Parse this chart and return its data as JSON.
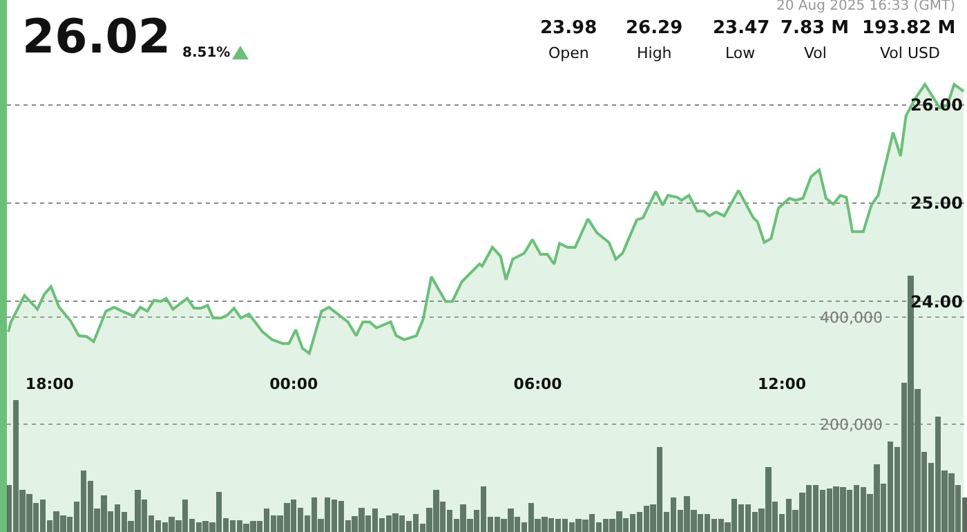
{
  "chart_data": {
    "type": "area",
    "annotations": [
      "26.02",
      "8.51%",
      "20 Aug 2025 16:33 (GMT)",
      "23.98",
      "Open",
      "26.29",
      "High",
      "23.47",
      "Low",
      "7.83 M",
      "Vol",
      "193.82 M",
      "Vol USD"
    ],
    "series": [
      {
        "color": "#6cbf7a",
        "x": [
          "2025-08-19T16:59",
          "2025-08-19T17:03",
          "2025-08-19T17:23",
          "2025-08-19T17:42",
          "2025-08-19T17:52",
          "2025-08-19T18:02",
          "2025-08-19T18:14",
          "2025-08-19T18:31",
          "2025-08-19T18:43",
          "2025-08-19T18:55",
          "2025-08-19T19:05",
          "2025-08-19T19:23",
          "2025-08-19T19:35",
          "2025-08-19T19:47",
          "2025-08-19T20:04",
          "2025-08-19T20:14",
          "2025-08-19T20:24",
          "2025-08-19T20:34",
          "2025-08-19T20:44",
          "2025-08-19T20:52",
          "2025-08-19T21:02",
          "2025-08-19T21:23",
          "2025-08-19T21:33",
          "2025-08-19T21:43",
          "2025-08-19T21:53",
          "2025-08-19T22:01",
          "2025-08-19T22:13",
          "2025-08-19T22:22",
          "2025-08-19T22:32",
          "2025-08-19T22:42",
          "2025-08-19T22:54",
          "2025-08-19T23:14",
          "2025-08-19T23:28",
          "2025-08-19T23:44",
          "2025-08-19T23:53",
          "2025-08-20T00:03",
          "2025-08-20T00:13",
          "2025-08-20T00:23",
          "2025-08-20T00:41",
          "2025-08-20T00:52",
          "2025-08-20T01:20",
          "2025-08-20T01:32",
          "2025-08-20T01:42",
          "2025-08-20T01:52",
          "2025-08-20T02:02",
          "2025-08-20T02:23",
          "2025-08-20T02:31",
          "2025-08-20T02:43",
          "2025-08-20T03:01",
          "2025-08-20T03:11",
          "2025-08-20T03:23",
          "2025-08-20T03:44",
          "2025-08-20T03:54",
          "2025-08-20T04:08",
          "2025-08-20T04:34",
          "2025-08-20T04:38",
          "2025-08-20T04:53",
          "2025-08-20T05:05",
          "2025-08-20T05:13",
          "2025-08-20T05:23",
          "2025-08-20T05:40",
          "2025-08-20T05:52",
          "2025-08-20T06:04",
          "2025-08-20T06:14",
          "2025-08-20T06:24",
          "2025-08-20T06:32",
          "2025-08-20T06:44",
          "2025-08-20T06:55",
          "2025-08-20T07:14",
          "2025-08-20T07:27",
          "2025-08-20T07:45",
          "2025-08-20T07:55",
          "2025-08-20T08:05",
          "2025-08-20T08:26",
          "2025-08-20T08:35",
          "2025-08-20T08:54",
          "2025-08-20T09:04",
          "2025-08-20T09:12",
          "2025-08-20T09:26",
          "2025-08-20T09:32",
          "2025-08-20T09:43",
          "2025-08-20T09:55",
          "2025-08-20T10:05",
          "2025-08-20T10:13",
          "2025-08-20T10:23",
          "2025-08-20T10:35",
          "2025-08-20T10:56",
          "2025-08-20T11:18",
          "2025-08-20T11:24",
          "2025-08-20T11:34",
          "2025-08-20T11:44",
          "2025-08-20T11:55",
          "2025-08-20T12:11",
          "2025-08-20T12:20",
          "2025-08-20T12:31",
          "2025-08-20T12:43",
          "2025-08-20T12:55",
          "2025-08-20T13:05",
          "2025-08-20T13:16",
          "2025-08-20T13:26",
          "2025-08-20T13:35",
          "2025-08-20T13:44",
          "2025-08-20T14:00",
          "2025-08-20T14:12",
          "2025-08-20T14:22",
          "2025-08-20T14:44",
          "2025-08-20T14:55",
          "2025-08-20T15:03",
          "2025-08-20T15:17",
          "2025-08-20T15:31",
          "2025-08-20T15:41",
          "2025-08-20T15:53",
          "2025-08-20T16:04",
          "2025-08-20T16:14",
          "2025-08-20T16:28"
        ],
        "values": [
          23.69,
          23.79,
          24.06,
          23.92,
          24.07,
          24.15,
          23.94,
          23.8,
          23.65,
          23.64,
          23.59,
          23.9,
          23.94,
          23.9,
          23.85,
          23.94,
          23.9,
          24.01,
          24,
          24.03,
          23.92,
          24.03,
          23.93,
          23.93,
          23.96,
          23.83,
          23.83,
          23.86,
          23.93,
          23.83,
          23.87,
          23.69,
          23.61,
          23.57,
          23.57,
          23.71,
          23.52,
          23.47,
          23.9,
          23.94,
          23.79,
          23.65,
          23.79,
          23.79,
          23.73,
          23.79,
          23.65,
          23.61,
          23.65,
          23.82,
          24.25,
          24,
          24,
          24.2,
          24.38,
          24.36,
          24.55,
          24.46,
          24.22,
          24.43,
          24.49,
          24.63,
          24.48,
          24.48,
          24.38,
          24.59,
          24.55,
          24.55,
          24.84,
          24.7,
          24.6,
          24.43,
          24.49,
          24.83,
          24.85,
          25.12,
          24.98,
          25.08,
          25.06,
          25.03,
          25.08,
          24.92,
          24.92,
          24.87,
          24.91,
          24.87,
          25.13,
          24.85,
          24.81,
          24.6,
          24.64,
          24.95,
          25.05,
          25.03,
          25.05,
          25.27,
          25.34,
          25.05,
          24.99,
          25.08,
          25.06,
          24.71,
          24.71,
          24.98,
          25.08,
          25.72,
          25.48,
          25.89,
          26.07,
          26.21,
          26.1,
          25.97,
          26,
          26.21,
          26.14
        ]
      },
      {
        "type": "bar",
        "axis": "y2",
        "color": "#5d6862",
        "x": [
          "2025-08-19T17:00",
          "2025-08-19T17:10",
          "2025-08-19T17:20",
          "2025-08-19T17:30",
          "2025-08-19T17:40",
          "2025-08-19T17:50",
          "2025-08-19T18:00",
          "2025-08-19T18:10",
          "2025-08-19T18:20",
          "2025-08-19T18:30",
          "2025-08-19T18:40",
          "2025-08-19T18:50",
          "2025-08-19T19:00",
          "2025-08-19T19:10",
          "2025-08-19T19:20",
          "2025-08-19T19:30",
          "2025-08-19T19:40",
          "2025-08-19T19:50",
          "2025-08-19T20:00",
          "2025-08-19T20:10",
          "2025-08-19T20:20",
          "2025-08-19T20:30",
          "2025-08-19T20:40",
          "2025-08-19T20:50",
          "2025-08-19T21:00",
          "2025-08-19T21:10",
          "2025-08-19T21:20",
          "2025-08-19T21:30",
          "2025-08-19T21:40",
          "2025-08-19T21:50",
          "2025-08-19T22:00",
          "2025-08-19T22:10",
          "2025-08-19T22:20",
          "2025-08-19T22:30",
          "2025-08-19T22:40",
          "2025-08-19T22:50",
          "2025-08-19T23:00",
          "2025-08-19T23:10",
          "2025-08-19T23:20",
          "2025-08-19T23:30",
          "2025-08-19T23:40",
          "2025-08-19T23:50",
          "2025-08-20T00:00",
          "2025-08-20T00:10",
          "2025-08-20T00:20",
          "2025-08-20T00:30",
          "2025-08-20T00:40",
          "2025-08-20T00:50",
          "2025-08-20T01:00",
          "2025-08-20T01:10",
          "2025-08-20T01:20",
          "2025-08-20T01:30",
          "2025-08-20T01:40",
          "2025-08-20T01:50",
          "2025-08-20T02:00",
          "2025-08-20T02:10",
          "2025-08-20T02:20",
          "2025-08-20T02:30",
          "2025-08-20T02:40",
          "2025-08-20T02:50",
          "2025-08-20T03:00",
          "2025-08-20T03:10",
          "2025-08-20T03:20",
          "2025-08-20T03:30",
          "2025-08-20T03:40",
          "2025-08-20T03:50",
          "2025-08-20T04:00",
          "2025-08-20T04:10",
          "2025-08-20T04:20",
          "2025-08-20T04:30",
          "2025-08-20T04:40",
          "2025-08-20T04:50",
          "2025-08-20T05:00",
          "2025-08-20T05:10",
          "2025-08-20T05:20",
          "2025-08-20T05:30",
          "2025-08-20T05:40",
          "2025-08-20T05:50",
          "2025-08-20T06:00",
          "2025-08-20T06:10",
          "2025-08-20T06:20",
          "2025-08-20T06:30",
          "2025-08-20T06:40",
          "2025-08-20T06:50",
          "2025-08-20T07:00",
          "2025-08-20T07:10",
          "2025-08-20T07:20",
          "2025-08-20T07:30",
          "2025-08-20T07:40",
          "2025-08-20T07:50",
          "2025-08-20T08:00",
          "2025-08-20T08:10",
          "2025-08-20T08:20",
          "2025-08-20T08:30",
          "2025-08-20T08:40",
          "2025-08-20T08:50",
          "2025-08-20T09:00",
          "2025-08-20T09:10",
          "2025-08-20T09:20",
          "2025-08-20T09:30",
          "2025-08-20T09:40",
          "2025-08-20T09:50",
          "2025-08-20T10:00",
          "2025-08-20T10:10",
          "2025-08-20T10:20",
          "2025-08-20T10:30",
          "2025-08-20T10:40",
          "2025-08-20T10:50",
          "2025-08-20T11:00",
          "2025-08-20T11:10",
          "2025-08-20T11:20",
          "2025-08-20T11:30",
          "2025-08-20T11:40",
          "2025-08-20T11:50",
          "2025-08-20T12:00",
          "2025-08-20T12:10",
          "2025-08-20T12:20",
          "2025-08-20T12:30",
          "2025-08-20T12:40",
          "2025-08-20T12:50",
          "2025-08-20T13:00",
          "2025-08-20T13:10",
          "2025-08-20T13:20",
          "2025-08-20T13:30",
          "2025-08-20T13:40",
          "2025-08-20T13:50",
          "2025-08-20T14:00",
          "2025-08-20T14:10",
          "2025-08-20T14:20",
          "2025-08-20T14:30",
          "2025-08-20T14:40",
          "2025-08-20T14:50",
          "2025-08-20T15:00",
          "2025-08-20T15:10",
          "2025-08-20T15:20",
          "2025-08-20T15:30",
          "2025-08-20T15:40",
          "2025-08-20T15:50",
          "2025-08-20T16:00",
          "2025-08-20T16:10",
          "2025-08-20T16:20",
          "2025-08-20T16:30"
        ],
        "values": [
          88000,
          246000,
          79000,
          71000,
          54000,
          61000,
          22000,
          38000,
          31000,
          28000,
          56000,
          115000,
          95000,
          44000,
          68000,
          39000,
          51000,
          37000,
          20000,
          78000,
          61000,
          31000,
          22000,
          18000,
          28000,
          22000,
          60000,
          24000,
          18000,
          20000,
          18000,
          75000,
          26000,
          22000,
          22000,
          15000,
          21000,
          21000,
          44000,
          31000,
          31000,
          54000,
          61000,
          45000,
          31000,
          64000,
          24000,
          64000,
          60000,
          58000,
          22000,
          30000,
          45000,
          31000,
          44000,
          26000,
          31000,
          35000,
          31000,
          20000,
          33000,
          15000,
          45000,
          78000,
          56000,
          41000,
          24000,
          51000,
          24000,
          41000,
          85000,
          28000,
          28000,
          24000,
          44000,
          28000,
          18000,
          54000,
          24000,
          28000,
          26000,
          24000,
          24000,
          18000,
          24000,
          23000,
          33000,
          18000,
          24000,
          24000,
          39000,
          26000,
          33000,
          37000,
          49000,
          52000,
          158000,
          37000,
          64000,
          41000,
          67000,
          41000,
          33000,
          33000,
          24000,
          24000,
          18000,
          62000,
          52000,
          52000,
          37000,
          44000,
          121000,
          56000,
          33000,
          62000,
          41000,
          73000,
          88000,
          88000,
          79000,
          81000,
          85000,
          84000,
          79000,
          88000,
          84000,
          71000,
          126000,
          90000,
          169000,
          158000,
          278000,
          477000,
          266000,
          149000,
          129000,
          215000,
          114000,
          109000,
          88000,
          64000
        ]
      }
    ],
    "xlim": [
      "2025-08-19T16:57",
      "2025-08-20T16:33"
    ],
    "xticks": [
      {
        "value": "2025-08-19T18:00",
        "label": "18:00"
      },
      {
        "value": "2025-08-20T00:00",
        "label": "00:00"
      },
      {
        "value": "2025-08-20T06:00",
        "label": "06:00"
      },
      {
        "value": "2025-08-20T12:00",
        "label": "12:00"
      }
    ],
    "ylim": [
      21.65,
      27.07
    ],
    "yticks": [
      {
        "value": 24,
        "label": "24.00"
      },
      {
        "value": 25,
        "label": "25.00"
      },
      {
        "value": 26,
        "label": "26.00"
      }
    ],
    "y2lim": [
      0,
      990000
    ],
    "y2ticks": [
      {
        "value": 200000,
        "label": "200,000"
      },
      {
        "value": 400000,
        "label": "400,000"
      }
    ],
    "grid": "y",
    "legend": false
  }
}
